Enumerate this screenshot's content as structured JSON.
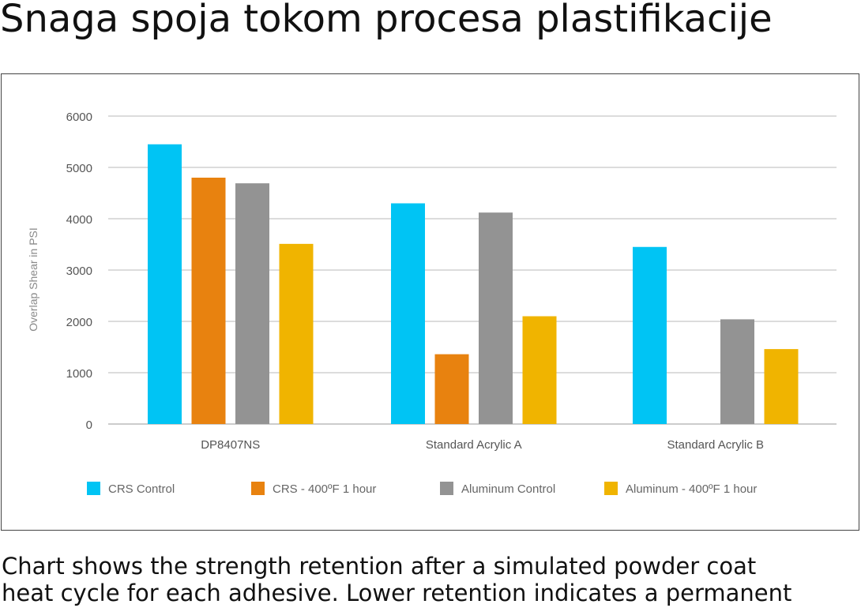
{
  "page": {
    "title": "Snaga spoja tokom procesa plastifikacije",
    "caption_lines": [
      "Chart shows the strength retention after a simulated powder coat",
      "heat cycle for each adhesive. Lower retention indicates a permanent"
    ]
  },
  "chart_data": {
    "type": "bar",
    "title": "",
    "xlabel": "",
    "ylabel": "Overlap Shear in PSI",
    "ylim": [
      0,
      6000
    ],
    "yticks": [
      0,
      1000,
      2000,
      3000,
      4000,
      5000,
      6000
    ],
    "grid": true,
    "legend_position": "bottom",
    "categories": [
      "DP8407NS",
      "Standard Acrylic A",
      "Standard Acrylic B"
    ],
    "series": [
      {
        "name": "CRS Control",
        "color": "#00c4f4",
        "values": [
          5450,
          4300,
          3450
        ]
      },
      {
        "name": "CRS - 400ºF 1 hour",
        "color": "#e8820f",
        "values": [
          4800,
          1360,
          null
        ]
      },
      {
        "name": "Aluminum Control",
        "color": "#939393",
        "values": [
          4690,
          4120,
          2040
        ]
      },
      {
        "name": "Aluminum - 400ºF 1 hour",
        "color": "#f0b400",
        "values": [
          3510,
          2100,
          1460
        ]
      }
    ]
  }
}
